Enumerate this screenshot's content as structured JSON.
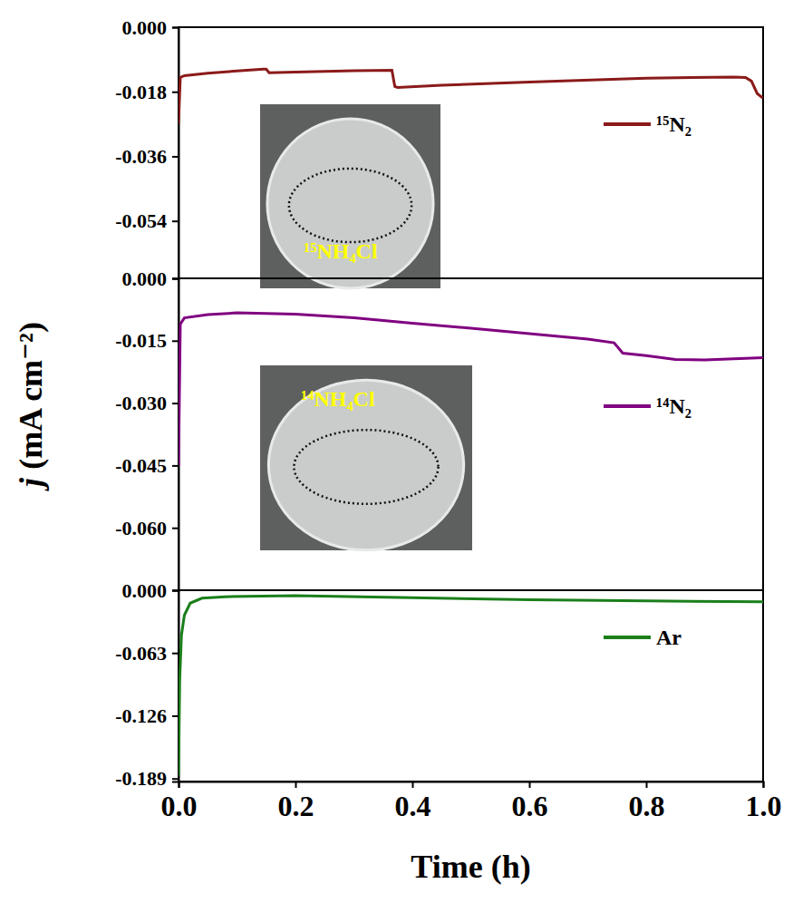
{
  "chart_data": [
    {
      "type": "line",
      "legend": "right",
      "tick_labels": "y",
      "xlim": [
        0,
        1
      ],
      "ylim": [
        -0.07,
        0
      ],
      "yticks": [
        {
          "value": 0,
          "label": "0.000"
        },
        -0.018,
        -0.036,
        -0.054
      ],
      "x": [
        0,
        0.003,
        0.01,
        0.05,
        0.1,
        0.145,
        0.15,
        0.155,
        0.2,
        0.3,
        0.365,
        0.37,
        0.375,
        0.45,
        0.6,
        0.8,
        0.95,
        0.97,
        0.98,
        0.99,
        1.0
      ],
      "series": [
        {
          "name": "¹⁵N₂",
          "color": "#8b1a1a",
          "values": [
            -0.027,
            -0.014,
            -0.0135,
            -0.0128,
            -0.0122,
            -0.0117,
            -0.0117,
            -0.0127,
            -0.0125,
            -0.0121,
            -0.012,
            -0.0165,
            -0.0168,
            -0.0162,
            -0.0153,
            -0.0142,
            -0.0139,
            -0.014,
            -0.015,
            -0.0185,
            -0.0198
          ]
        }
      ],
      "annotations": [
        {
          "text": "¹⁵NH₄Cl"
        }
      ]
    },
    {
      "type": "line",
      "legend": "right",
      "tick_labels": "y",
      "ylabel": "j (mA cm⁻²)",
      "xlim": [
        0,
        1
      ],
      "ylim": [
        -0.075,
        0
      ],
      "yticks": [
        {
          "value": 0,
          "label": "0.000"
        },
        -0.015,
        {
          "value": -0.03,
          "label": "-0.030"
        },
        -0.045,
        {
          "value": -0.06,
          "label": "-0.060"
        }
      ],
      "x": [
        0,
        0.003,
        0.01,
        0.05,
        0.1,
        0.2,
        0.3,
        0.4,
        0.5,
        0.6,
        0.7,
        0.745,
        0.76,
        0.8,
        0.85,
        0.9,
        1.0
      ],
      "series": [
        {
          "name": "¹⁴N₂",
          "color": "#800080",
          "values": [
            -0.045,
            -0.011,
            -0.0095,
            -0.0087,
            -0.0083,
            -0.0086,
            -0.0095,
            -0.0108,
            -0.012,
            -0.0133,
            -0.0146,
            -0.0155,
            -0.018,
            -0.0186,
            -0.0195,
            -0.0196,
            -0.0191
          ]
        }
      ],
      "annotations": [
        {
          "text": "¹⁴NH₄Cl"
        }
      ]
    },
    {
      "type": "line",
      "legend": "right",
      "xlabel": "Time (h)",
      "xlim": [
        0,
        1
      ],
      "ylim": [
        -0.192,
        0
      ],
      "xticks": [
        {
          "value": 0,
          "label": "0.0"
        },
        0.2,
        0.4,
        0.6,
        0.8,
        {
          "value": 1,
          "label": "1.0"
        }
      ],
      "yticks": [
        {
          "value": 0,
          "label": "0.000"
        },
        -0.063,
        -0.126,
        -0.189
      ],
      "x": [
        0,
        0.002,
        0.005,
        0.01,
        0.02,
        0.04,
        0.08,
        0.2,
        0.4,
        0.6,
        0.8,
        1.0
      ],
      "series": [
        {
          "name": "Ar",
          "color": "#1a7f1a",
          "values": [
            -0.186,
            -0.09,
            -0.045,
            -0.025,
            -0.013,
            -0.008,
            -0.0065,
            -0.0055,
            -0.0075,
            -0.0095,
            -0.0108,
            -0.0115
          ]
        }
      ]
    }
  ]
}
